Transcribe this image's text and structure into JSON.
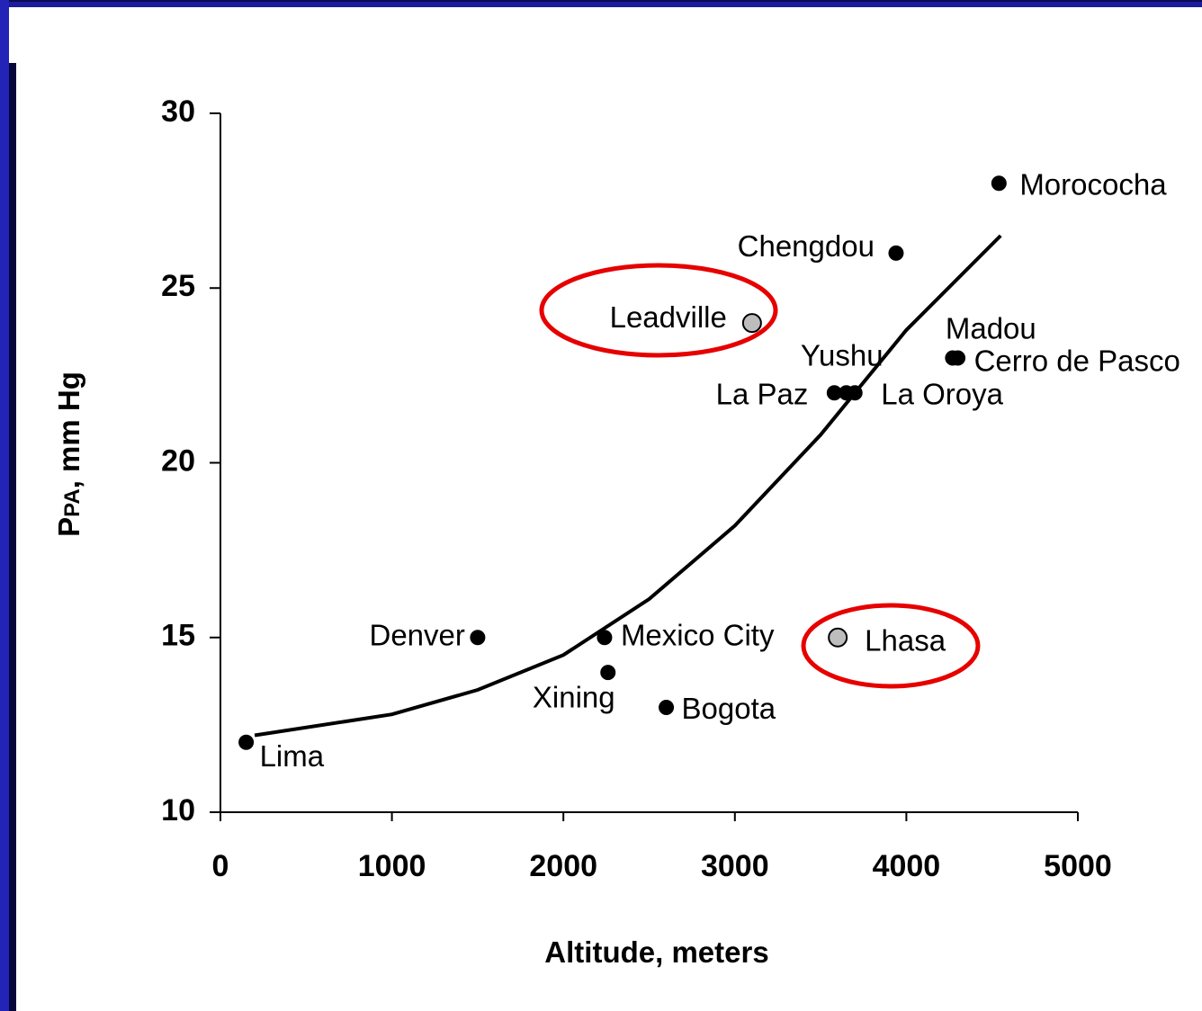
{
  "chart_data": {
    "type": "scatter",
    "xlabel": "Altitude, meters",
    "ylabel": {
      "main": "P",
      "sub": "PA",
      "rest": ", mm Hg"
    },
    "xlim": [
      0,
      5000
    ],
    "ylim": [
      10,
      30
    ],
    "xticks": [
      0,
      1000,
      2000,
      3000,
      4000,
      5000
    ],
    "yticks": [
      10,
      15,
      20,
      25,
      30
    ],
    "points": {
      "labels": [
        "Lima",
        "Denver",
        "Mexico City",
        "Xining",
        "Bogota",
        "Lhasa",
        "Leadville",
        "Chengdou",
        "La Paz",
        "Yushu",
        "La Oroya",
        "Madou",
        "Cerro de Pasco",
        "Morococha"
      ],
      "x": [
        150,
        1500,
        2240,
        2260,
        2600,
        3600,
        3100,
        3940,
        3580,
        3650,
        3700,
        4270,
        4300,
        4540
      ],
      "values": [
        12,
        15,
        15,
        14,
        13,
        15,
        24,
        26,
        22,
        22,
        22,
        23,
        23,
        28
      ],
      "colors": [
        "#000000",
        "#000000",
        "#000000",
        "#000000",
        "#000000",
        "#bdbdbd",
        "#bdbdbd",
        "#000000",
        "#000000",
        "#000000",
        "#000000",
        "#000000",
        "#000000",
        "#000000"
      ]
    },
    "curve": {
      "type": "line",
      "color": "#000000",
      "x": [
        200,
        1000,
        1500,
        2000,
        2500,
        3000,
        3500,
        4000,
        4550
      ],
      "values": [
        12.2,
        12.8,
        13.5,
        14.5,
        16.1,
        18.2,
        20.8,
        23.8,
        26.5
      ]
    }
  }
}
